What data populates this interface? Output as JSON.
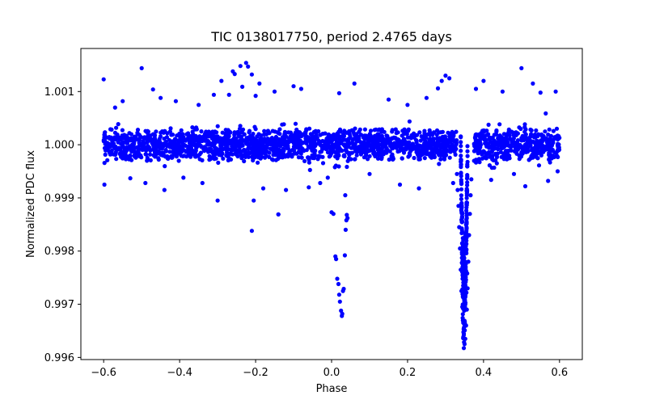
{
  "chart_data": {
    "type": "scatter",
    "title": "TIC 0138017750, period 2.4765 days",
    "xlabel": "Phase",
    "ylabel": "Normalized PDC flux",
    "xlim": [
      -0.66,
      0.66
    ],
    "ylim": [
      0.99596,
      1.00181
    ],
    "xticks": [
      {
        "value": -0.6,
        "label": "−0.6"
      },
      {
        "value": -0.4,
        "label": "−0.4"
      },
      {
        "value": -0.2,
        "label": "−0.2"
      },
      {
        "value": 0.0,
        "label": "0.0"
      },
      {
        "value": 0.2,
        "label": "0.2"
      },
      {
        "value": 0.4,
        "label": "0.4"
      },
      {
        "value": 0.6,
        "label": "0.6"
      }
    ],
    "yticks": [
      {
        "value": 0.996,
        "label": "0.996"
      },
      {
        "value": 0.997,
        "label": "0.997"
      },
      {
        "value": 0.998,
        "label": "0.998"
      },
      {
        "value": 0.999,
        "label": "0.999"
      },
      {
        "value": 1.0,
        "label": "1.000"
      },
      {
        "value": 1.001,
        "label": "1.001"
      }
    ],
    "grid": false,
    "legend": "none",
    "marker_color": "#0000ff",
    "marker": "filled-circle",
    "series": [
      {
        "values": [
          [
            -0.6,
            1.00123
          ],
          [
            -0.598,
            0.99925
          ],
          [
            -0.57,
            1.0007
          ],
          [
            -0.55,
            1.00082
          ],
          [
            -0.53,
            0.99937
          ],
          [
            -0.5,
            1.00144
          ],
          [
            -0.49,
            0.99928
          ],
          [
            -0.47,
            1.00104
          ],
          [
            -0.45,
            1.00088
          ],
          [
            -0.44,
            0.99915
          ],
          [
            -0.41,
            1.00082
          ],
          [
            -0.39,
            0.99938
          ],
          [
            -0.35,
            1.00075
          ],
          [
            -0.34,
            0.99928
          ],
          [
            -0.31,
            1.00094
          ],
          [
            -0.3,
            0.99895
          ],
          [
            -0.29,
            1.0012
          ],
          [
            -0.27,
            1.00094
          ],
          [
            -0.26,
            1.00138
          ],
          [
            -0.255,
            1.00133
          ],
          [
            -0.24,
            1.00148
          ],
          [
            -0.235,
            1.00109
          ],
          [
            -0.225,
            1.00154
          ],
          [
            -0.22,
            1.00147
          ],
          [
            -0.21,
            1.00132
          ],
          [
            -0.205,
            0.99895
          ],
          [
            -0.2,
            1.00092
          ],
          [
            -0.19,
            1.00115
          ],
          [
            -0.18,
            0.99918
          ],
          [
            -0.15,
            1.001
          ],
          [
            -0.14,
            0.99869
          ],
          [
            -0.12,
            0.99915
          ],
          [
            -0.1,
            1.0011
          ],
          [
            -0.08,
            1.00105
          ],
          [
            -0.06,
            0.9992
          ],
          [
            -0.03,
            0.99928
          ],
          [
            -0.01,
            0.99938
          ],
          [
            0.02,
            1.00097
          ],
          [
            0.06,
            1.00115
          ],
          [
            0.1,
            0.99945
          ],
          [
            0.15,
            1.00085
          ],
          [
            0.18,
            0.99925
          ],
          [
            0.2,
            1.00075
          ],
          [
            0.23,
            0.99918
          ],
          [
            0.25,
            1.00088
          ],
          [
            0.28,
            1.00106
          ],
          [
            0.29,
            1.0012
          ],
          [
            0.3,
            1.0013
          ],
          [
            0.31,
            1.00125
          ],
          [
            0.32,
            0.99928
          ],
          [
            0.38,
            1.00105
          ],
          [
            0.4,
            1.0012
          ],
          [
            0.42,
            0.99934
          ],
          [
            0.45,
            1.001
          ],
          [
            0.48,
            0.99945
          ],
          [
            0.5,
            1.00144
          ],
          [
            0.51,
            0.99922
          ],
          [
            0.53,
            1.00115
          ],
          [
            0.55,
            1.00098
          ],
          [
            0.57,
            0.99932
          ],
          [
            0.59,
            1.001
          ],
          [
            0.595,
            0.9995
          ],
          [
            -0.21,
            0.99838
          ],
          [
            -0.14,
            0.99869
          ],
          [
            0.0,
            0.99873
          ],
          [
            0.005,
            0.9987
          ],
          [
            0.01,
            0.9979
          ],
          [
            0.012,
            0.99785
          ],
          [
            0.015,
            0.99748
          ],
          [
            0.018,
            0.99738
          ],
          [
            0.02,
            0.99718
          ],
          [
            0.022,
            0.99705
          ],
          [
            0.025,
            0.99688
          ],
          [
            0.027,
            0.99678
          ],
          [
            0.028,
            0.99682
          ],
          [
            0.03,
            0.99725
          ],
          [
            0.032,
            0.99729
          ],
          [
            0.035,
            0.99792
          ],
          [
            0.037,
            0.9984
          ],
          [
            0.039,
            0.99858
          ],
          [
            0.04,
            0.99868
          ],
          [
            0.042,
            0.99862
          ],
          [
            0.036,
            0.99905
          ],
          [
            0.33,
            0.99945
          ],
          [
            0.332,
            0.99915
          ],
          [
            0.334,
            0.99885
          ],
          [
            0.336,
            0.99845
          ],
          [
            0.338,
            0.99805
          ],
          [
            0.34,
            0.99765
          ],
          [
            0.342,
            0.99725
          ],
          [
            0.344,
            0.99695
          ],
          [
            0.346,
            0.9967
          ],
          [
            0.348,
            0.99645
          ],
          [
            0.35,
            0.99625
          ],
          [
            0.352,
            0.99635
          ],
          [
            0.354,
            0.9966
          ],
          [
            0.356,
            0.9969
          ],
          [
            0.358,
            0.9973
          ],
          [
            0.36,
            0.9978
          ],
          [
            0.362,
            0.9983
          ],
          [
            0.364,
            0.9987
          ],
          [
            0.366,
            0.99905
          ],
          [
            0.368,
            0.99935
          ],
          [
            0.345,
            0.99755
          ],
          [
            0.347,
            0.99712
          ],
          [
            0.349,
            0.99688
          ],
          [
            0.351,
            0.99705
          ],
          [
            0.353,
            0.99742
          ],
          [
            0.355,
            0.99722
          ],
          [
            0.343,
            0.99778
          ],
          [
            0.357,
            0.99758
          ]
        ]
      }
    ],
    "dense_bands": [
      {
        "x_range": [
          -0.6,
          0.33
        ],
        "y_center": 1.0,
        "y_spread": 0.00028,
        "extra": [
          [
            -0.6,
            0.33
          ]
        ]
      },
      {
        "x_range": [
          0.375,
          0.6
        ],
        "y_center": 1.0,
        "y_spread": 0.00028
      }
    ],
    "transit_primary": {
      "x_center": 0.349,
      "x_width": 0.018,
      "depth_min": 0.99625
    },
    "transit_secondary": {
      "x_center": 0.024,
      "x_width": 0.04,
      "depth_min": 0.99678
    }
  }
}
